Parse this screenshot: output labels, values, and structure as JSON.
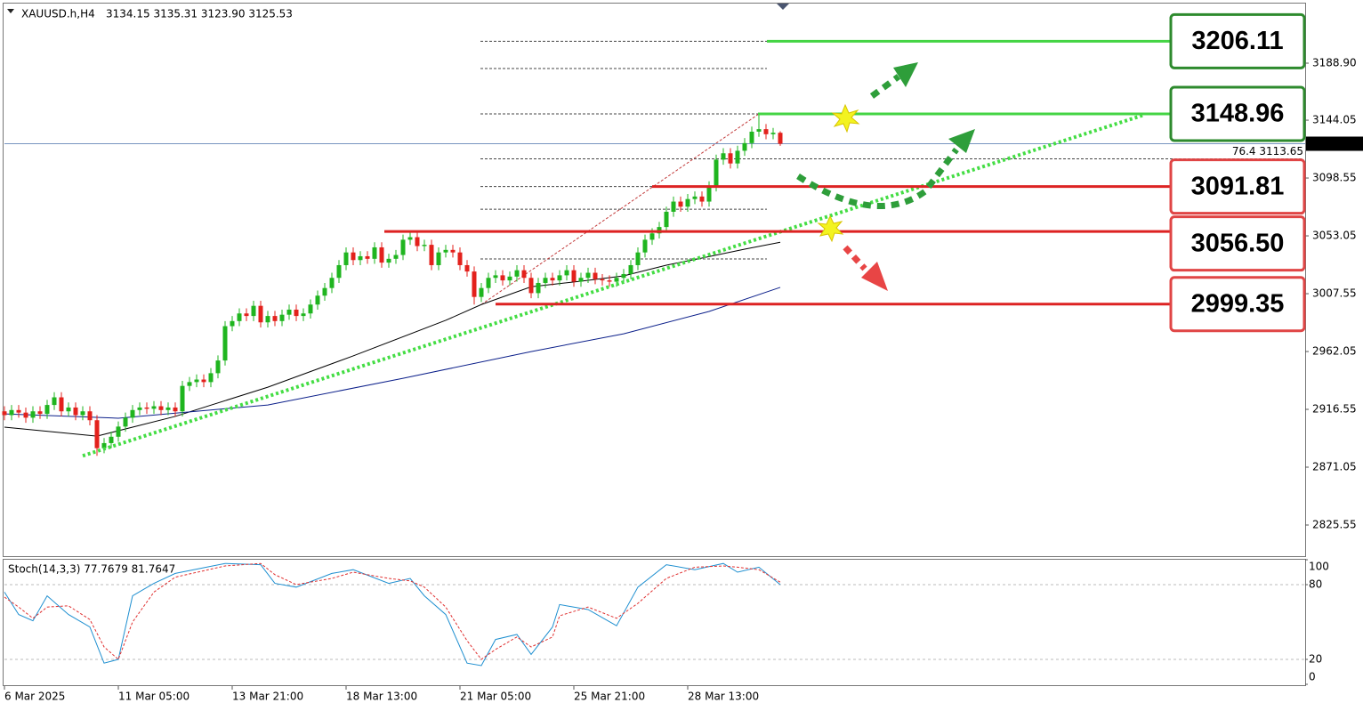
{
  "header": {
    "symbol": "XAUUSD.h,H4",
    "ohlc": "3134.15 3135.31 3123.90 3125.53"
  },
  "chart_data": [
    {
      "type": "candlestick",
      "open": [
        2915,
        2912,
        2916,
        2914,
        2910,
        2915,
        2913,
        2920,
        2926,
        2915,
        2918,
        2912,
        2915,
        2908,
        2886,
        2890,
        2895,
        2903,
        2910,
        2916,
        2918,
        2917,
        2919,
        2916,
        2918,
        2915,
        2935,
        2938,
        2940,
        2938,
        2945,
        2955,
        2982,
        2986,
        2992,
        2990,
        2998,
        2985,
        2990,
        2986,
        2991,
        2995,
        2990,
        2992,
        2999,
        3006,
        3012,
        3020,
        3030,
        3040,
        3034,
        3037,
        3035,
        3044,
        3032,
        3035,
        3038,
        3050,
        3052,
        3045,
        3046,
        3030,
        3040,
        3042,
        3040,
        3030,
        3025,
        3005,
        3012,
        3020,
        3022,
        3018,
        3021,
        3026,
        3020,
        3008,
        3016,
        3020,
        3018,
        3022,
        3026,
        3017,
        3020,
        3024,
        3019,
        3018,
        3017,
        3020,
        3023,
        3030,
        3040,
        3050,
        3055,
        3060,
        3072,
        3080,
        3076,
        3082,
        3084,
        3080,
        3092,
        3113,
        3118,
        3110,
        3120,
        3126,
        3135,
        3137,
        3133,
        3134.15
      ],
      "high": [
        2919,
        2920,
        2920,
        2918,
        2919,
        2919,
        2924,
        2930,
        2930,
        2922,
        2922,
        2919,
        2919,
        2912,
        2894,
        2899,
        2907,
        2914,
        2920,
        2922,
        2922,
        2923,
        2923,
        2922,
        2922,
        2939,
        2942,
        2944,
        2944,
        2949,
        2959,
        2986,
        2990,
        2996,
        2996,
        3002,
        3002,
        2994,
        2994,
        2995,
        2999,
        2999,
        2996,
        3003,
        3010,
        3016,
        3024,
        3034,
        3044,
        3044,
        3041,
        3041,
        3048,
        3048,
        3039,
        3042,
        3054,
        3056,
        3056,
        3050,
        3050,
        3044,
        3046,
        3046,
        3044,
        3034,
        3029,
        3016,
        3024,
        3026,
        3026,
        3025,
        3030,
        3030,
        3024,
        3020,
        3024,
        3024,
        3026,
        3030,
        3030,
        3024,
        3028,
        3028,
        3023,
        3022,
        3024,
        3027,
        3034,
        3044,
        3054,
        3059,
        3064,
        3076,
        3084,
        3084,
        3086,
        3088,
        3088,
        3096,
        3117,
        3122,
        3122,
        3124,
        3130,
        3139,
        3149,
        3141,
        3138,
        3135.31
      ],
      "low": [
        2908,
        2908,
        2910,
        2906,
        2906,
        2909,
        2909,
        2916,
        2911,
        2911,
        2908,
        2908,
        2904,
        2880,
        2882,
        2886,
        2891,
        2899,
        2906,
        2912,
        2913,
        2913,
        2912,
        2912,
        2911,
        2911,
        2931,
        2934,
        2934,
        2934,
        2941,
        2951,
        2978,
        2982,
        2986,
        2986,
        2981,
        2981,
        2982,
        2982,
        2987,
        2986,
        2986,
        2988,
        2995,
        3002,
        3008,
        3016,
        3026,
        3030,
        3030,
        3031,
        3031,
        3028,
        3028,
        3031,
        3034,
        3046,
        3041,
        3041,
        3026,
        3026,
        3036,
        3036,
        3026,
        3021,
        2999,
        3001,
        3008,
        3016,
        3014,
        3014,
        3017,
        3016,
        3004,
        3004,
        3012,
        3014,
        3014,
        3018,
        3013,
        3013,
        3016,
        3015,
        3014,
        3013,
        3013,
        3016,
        3019,
        3026,
        3036,
        3046,
        3051,
        3056,
        3068,
        3072,
        3072,
        3078,
        3076,
        3076,
        3088,
        3109,
        3106,
        3106,
        3116,
        3122,
        3131,
        3129,
        3129,
        3123.9
      ],
      "close": [
        2912,
        2916,
        2914,
        2910,
        2915,
        2913,
        2920,
        2926,
        2915,
        2918,
        2912,
        2915,
        2908,
        2886,
        2890,
        2895,
        2903,
        2910,
        2916,
        2918,
        2917,
        2919,
        2916,
        2918,
        2915,
        2935,
        2938,
        2940,
        2938,
        2945,
        2955,
        2982,
        2986,
        2992,
        2990,
        2998,
        2985,
        2990,
        2986,
        2991,
        2995,
        2990,
        2992,
        2999,
        3006,
        3012,
        3020,
        3030,
        3040,
        3034,
        3037,
        3035,
        3044,
        3032,
        3035,
        3038,
        3050,
        3052,
        3045,
        3046,
        3030,
        3040,
        3042,
        3040,
        3030,
        3025,
        3005,
        3012,
        3020,
        3022,
        3018,
        3021,
        3026,
        3020,
        3008,
        3016,
        3020,
        3018,
        3022,
        3026,
        3017,
        3020,
        3024,
        3019,
        3018,
        3017,
        3020,
        3023,
        3030,
        3040,
        3050,
        3055,
        3060,
        3072,
        3080,
        3076,
        3082,
        3084,
        3080,
        3092,
        3113,
        3118,
        3110,
        3120,
        3126,
        3135,
        3137,
        3133,
        3134.15,
        3125.53
      ],
      "colors": {
        "up": "#1fb51f",
        "down": "#e3211c"
      },
      "xticks": [
        {
          "value": 0,
          "label": "6 Mar 2025"
        },
        {
          "value": 16,
          "label": "11 Mar 05:00"
        },
        {
          "value": 32,
          "label": "13 Mar 21:00"
        },
        {
          "value": 48,
          "label": "18 Mar 13:00"
        },
        {
          "value": 64,
          "label": "21 Mar 05:00"
        },
        {
          "value": 80,
          "label": "25 Mar 21:00"
        },
        {
          "value": 96,
          "label": "28 Mar 13:00"
        }
      ],
      "ylim": [
        2801.05,
        3235.1
      ],
      "yticks": [
        {
          "value": 3188.9,
          "label": "3188.90"
        },
        3144.05,
        3098.55,
        3053.05,
        3007.55,
        2962.05,
        2916.55,
        2871.05,
        2825.55
      ],
      "moving_averages": [
        {
          "color": "#000000",
          "x": [
            0,
            13,
            24,
            37,
            49,
            62,
            67,
            74,
            81,
            87,
            93,
            98,
            104,
            109
          ],
          "values": [
            2902.6,
            2895.5,
            2911,
            2934,
            2958.6,
            2986.6,
            2999,
            3013,
            3017.4,
            3021.6,
            3030,
            3035.6,
            3042.6,
            3048
          ]
        },
        {
          "color": "#0b1f8a",
          "x": [
            0,
            16,
            37,
            56,
            74,
            87,
            99,
            109
          ],
          "values": [
            2913,
            2909.6,
            2920,
            2941,
            2962,
            2976,
            2993.6,
            3012.5
          ]
        }
      ],
      "last_price": 3125.53,
      "levels": {
        "values": [
          3206.11,
          3148.96,
          3091.81,
          {
            "value": 3056.5,
            "label": "3056.50"
          },
          2999.35
        ],
        "colors": [
          "#44d444",
          "#44d444",
          "#dd2222",
          "#dd2222",
          "#dd2222"
        ],
        "label_colors": [
          "#2d8a2d",
          "#2d8a2d",
          "#e04545",
          "#e04545",
          "#e04545"
        ]
      },
      "trendline": {
        "color": "#44dd44",
        "x": [
          11,
          160
        ],
        "values": [
          2880,
          3148
        ]
      },
      "fib": {
        "levels": [
          3206.11,
          3184.7,
          3148.96,
          3113.65,
          3091.81,
          3074,
          3034.9
        ],
        "label": "76.4 3113.65",
        "anchor": {
          "x": [
            67,
            106
          ],
          "values": [
            2999,
            3149
          ]
        }
      }
    },
    {
      "type": "stochastic",
      "title": "Stoch(14,3,3) 77.7679 81.7647",
      "ylim": [
        0,
        100
      ],
      "yticks": [
        100,
        80,
        20,
        0
      ],
      "levels": [
        80,
        20
      ],
      "series": [
        {
          "color": "#1e8fd0",
          "x": [
            0,
            2,
            4,
            6,
            9,
            12,
            14,
            16,
            18,
            21,
            24,
            31,
            36,
            38,
            41,
            46,
            49,
            54,
            57,
            59,
            62,
            65,
            67,
            69,
            72,
            74,
            77,
            78,
            82,
            86,
            89,
            93,
            97,
            101,
            103,
            106,
            109
          ],
          "values": [
            74,
            56,
            51,
            71,
            56,
            46,
            17,
            20,
            71,
            81,
            89,
            97,
            96,
            81,
            78,
            89,
            92,
            81,
            85,
            71,
            56,
            17,
            15,
            36,
            40,
            24,
            46,
            64,
            60,
            47,
            78,
            96,
            92,
            97,
            90,
            94,
            80
          ]
        },
        {
          "color": "#e03030",
          "dashed": true,
          "x": [
            0,
            2,
            4,
            6,
            9,
            12,
            14,
            16,
            18,
            21,
            24,
            31,
            36,
            38,
            41,
            46,
            49,
            54,
            57,
            59,
            62,
            65,
            67,
            69,
            72,
            74,
            77,
            78,
            82,
            86,
            89,
            93,
            97,
            101,
            103,
            106,
            109
          ],
          "values": [
            70,
            62,
            53,
            62,
            63,
            52,
            30,
            20,
            50,
            74,
            86,
            95,
            97,
            88,
            80,
            85,
            90,
            85,
            83,
            78,
            62,
            35,
            20,
            28,
            38,
            30,
            38,
            55,
            62,
            53,
            65,
            85,
            94,
            95,
            94,
            92,
            82
          ]
        }
      ]
    }
  ]
}
